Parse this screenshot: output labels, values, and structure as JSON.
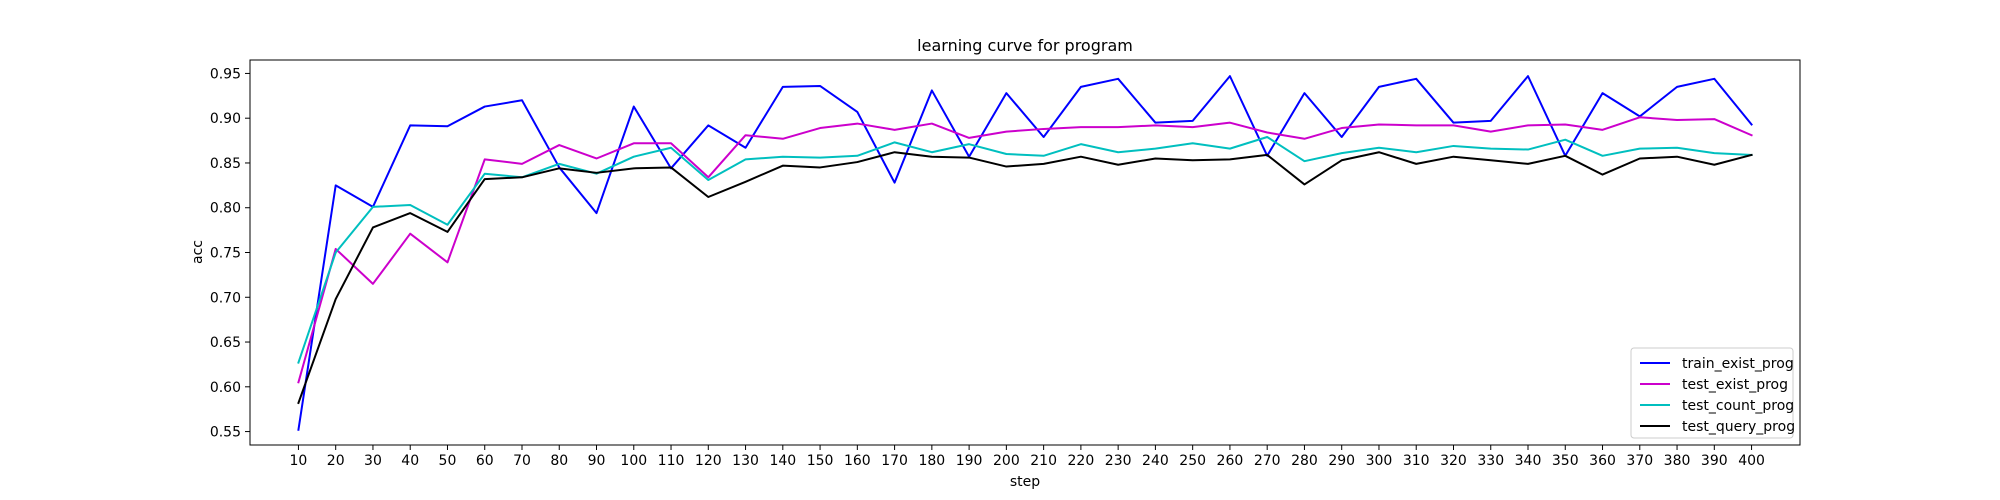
{
  "chart_data": {
    "type": "line",
    "title": "learning curve for program",
    "xlabel": "step",
    "ylabel": "acc",
    "xlim": [
      -3,
      413
    ],
    "ylim": [
      0.535,
      0.965
    ],
    "xticks": [
      10,
      20,
      30,
      40,
      50,
      60,
      70,
      80,
      90,
      100,
      110,
      120,
      130,
      140,
      150,
      160,
      170,
      180,
      190,
      200,
      210,
      220,
      230,
      240,
      250,
      260,
      270,
      280,
      290,
      300,
      310,
      320,
      330,
      340,
      350,
      360,
      370,
      380,
      390,
      400
    ],
    "yticks": [
      0.55,
      0.6,
      0.65,
      0.7,
      0.75,
      0.8,
      0.85,
      0.9,
      0.95
    ],
    "ytick_labels": [
      "0.55",
      "0.60",
      "0.65",
      "0.70",
      "0.75",
      "0.80",
      "0.85",
      "0.90",
      "0.95"
    ],
    "grid": false,
    "legend_position": "lower-right",
    "x": [
      10,
      20,
      30,
      40,
      50,
      60,
      70,
      80,
      90,
      100,
      110,
      120,
      130,
      140,
      150,
      160,
      170,
      180,
      190,
      200,
      210,
      220,
      230,
      240,
      250,
      260,
      270,
      280,
      290,
      300,
      310,
      320,
      330,
      340,
      350,
      360,
      370,
      380,
      390,
      400
    ],
    "series": [
      {
        "name": "train_exist_prog",
        "color": "#0000ff",
        "values": [
          0.552,
          0.825,
          0.801,
          0.892,
          0.891,
          0.913,
          0.92,
          0.845,
          0.794,
          0.913,
          0.844,
          0.892,
          0.867,
          0.935,
          0.936,
          0.907,
          0.828,
          0.931,
          0.857,
          0.928,
          0.879,
          0.935,
          0.944,
          0.895,
          0.897,
          0.947,
          0.858,
          0.928,
          0.879,
          0.935,
          0.944,
          0.895,
          0.897,
          0.947,
          0.858,
          0.928,
          0.902,
          0.935,
          0.944,
          0.893
        ]
      },
      {
        "name": "test_exist_prog",
        "color": "#cc00cc",
        "values": [
          0.605,
          0.754,
          0.715,
          0.771,
          0.739,
          0.854,
          0.849,
          0.87,
          0.855,
          0.872,
          0.872,
          0.834,
          0.881,
          0.877,
          0.889,
          0.894,
          0.887,
          0.894,
          0.878,
          0.885,
          0.888,
          0.89,
          0.89,
          0.892,
          0.89,
          0.895,
          0.884,
          0.877,
          0.889,
          0.893,
          0.892,
          0.892,
          0.885,
          0.892,
          0.893,
          0.887,
          0.901,
          0.898,
          0.899,
          0.881
        ]
      },
      {
        "name": "test_count_prog",
        "color": "#00bfbf",
        "values": [
          0.627,
          0.75,
          0.801,
          0.803,
          0.781,
          0.838,
          0.834,
          0.849,
          0.838,
          0.857,
          0.867,
          0.831,
          0.854,
          0.857,
          0.856,
          0.858,
          0.873,
          0.862,
          0.871,
          0.86,
          0.858,
          0.871,
          0.862,
          0.866,
          0.872,
          0.866,
          0.879,
          0.852,
          0.861,
          0.867,
          0.862,
          0.869,
          0.866,
          0.865,
          0.876,
          0.858,
          0.866,
          0.867,
          0.861,
          0.859
        ]
      },
      {
        "name": "test_query_prog",
        "color": "#000000",
        "values": [
          0.582,
          0.698,
          0.778,
          0.794,
          0.773,
          0.832,
          0.834,
          0.844,
          0.839,
          0.844,
          0.845,
          0.812,
          0.829,
          0.847,
          0.845,
          0.851,
          0.862,
          0.857,
          0.856,
          0.846,
          0.849,
          0.857,
          0.848,
          0.855,
          0.853,
          0.854,
          0.859,
          0.826,
          0.853,
          0.862,
          0.849,
          0.857,
          0.853,
          0.849,
          0.858,
          0.837,
          0.855,
          0.857,
          0.848,
          0.859
        ]
      }
    ]
  }
}
